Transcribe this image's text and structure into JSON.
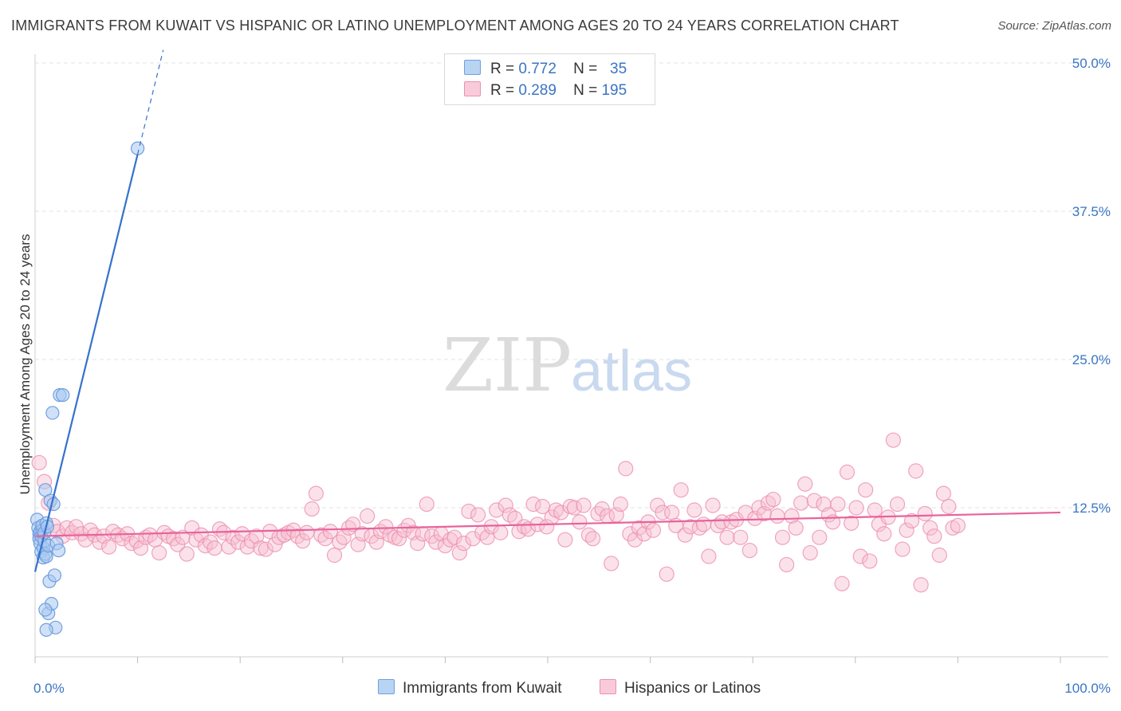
{
  "header": {
    "title": "IMMIGRANTS FROM KUWAIT VS HISPANIC OR LATINO UNEMPLOYMENT AMONG AGES 20 TO 24 YEARS CORRELATION CHART",
    "source": "Source: ZipAtlas.com"
  },
  "watermark": {
    "zip": "ZIP",
    "atlas": "atlas"
  },
  "legend": {
    "rows": [
      {
        "r_label": "R =",
        "r_value": "0.772",
        "n_label": "N =",
        "n_value": "35"
      },
      {
        "r_label": "R =",
        "r_value": "0.289",
        "n_label": "N =",
        "n_value": "195"
      }
    ]
  },
  "bottom_legend": {
    "items": [
      {
        "label": "Immigrants from Kuwait"
      },
      {
        "label": "Hispanics or Latinos"
      }
    ]
  },
  "colors": {
    "blue_fill": "#a9c8f0",
    "blue_stroke": "#6f9fe0",
    "blue_line": "#3572cc",
    "pink_fill": "#f7bfd0",
    "pink_stroke": "#ec8fae",
    "pink_line": "#e8639a",
    "axis_label": "#3a75c4",
    "grid": "#e3e3e3"
  },
  "chart_data": {
    "type": "scatter",
    "title": "IMMIGRANTS FROM KUWAIT VS HISPANIC OR LATINO UNEMPLOYMENT AMONG AGES 20 TO 24 YEARS CORRELATION CHART",
    "xlabel": "",
    "ylabel": "Unemployment Among Ages 20 to 24 years",
    "xlim": [
      0,
      100
    ],
    "ylim": [
      0,
      50
    ],
    "x_tick_labels": [
      "0.0%",
      "100.0%"
    ],
    "y_ticks": [
      12.5,
      25.0,
      37.5,
      50.0
    ],
    "y_tick_labels": [
      "12.5%",
      "25.0%",
      "37.5%",
      "50.0%"
    ],
    "grid": true,
    "series": [
      {
        "name": "Immigrants from Kuwait",
        "r": 0.772,
        "n": 35,
        "trend": {
          "x0": 0.0,
          "y0": 7.1,
          "x1": 10.0,
          "y1": 42.3,
          "dash_to_x": 12.5
        },
        "points": [
          [
            0.2,
            11.5
          ],
          [
            0.3,
            10.8
          ],
          [
            0.4,
            10.3
          ],
          [
            0.4,
            9.9
          ],
          [
            0.5,
            10.5
          ],
          [
            0.5,
            9.5
          ],
          [
            0.6,
            10.1
          ],
          [
            0.6,
            8.8
          ],
          [
            0.7,
            10.6
          ],
          [
            0.7,
            11.0
          ],
          [
            0.8,
            9.1
          ],
          [
            0.8,
            8.3
          ],
          [
            0.9,
            9.7
          ],
          [
            0.9,
            10.4
          ],
          [
            1.0,
            8.6
          ],
          [
            1.0,
            14.0
          ],
          [
            1.1,
            11.2
          ],
          [
            1.1,
            8.4
          ],
          [
            1.2,
            10.9
          ],
          [
            1.3,
            9.3
          ],
          [
            1.3,
            3.6
          ],
          [
            1.4,
            6.3
          ],
          [
            1.5,
            13.1
          ],
          [
            1.6,
            4.4
          ],
          [
            1.7,
            20.5
          ],
          [
            1.8,
            12.8
          ],
          [
            1.9,
            6.8
          ],
          [
            2.0,
            2.4
          ],
          [
            2.1,
            9.5
          ],
          [
            2.3,
            8.9
          ],
          [
            2.4,
            22.0
          ],
          [
            2.7,
            22.0
          ],
          [
            1.0,
            3.9
          ],
          [
            1.1,
            2.2
          ],
          [
            10.0,
            42.8
          ]
        ]
      },
      {
        "name": "Hispanics or Latinos",
        "r": 0.289,
        "n": 195,
        "trend": {
          "x0": 0.0,
          "y0": 10.1,
          "x1": 100.0,
          "y1": 12.1
        },
        "points": [
          [
            0.4,
            16.3
          ],
          [
            0.9,
            14.7
          ],
          [
            1.3,
            12.9
          ],
          [
            1.8,
            11.0
          ],
          [
            2.2,
            10.5
          ],
          [
            2.7,
            10.1
          ],
          [
            3.1,
            10.8
          ],
          [
            3.6,
            10.4
          ],
          [
            4.0,
            10.9
          ],
          [
            4.5,
            10.3
          ],
          [
            4.9,
            9.8
          ],
          [
            5.4,
            10.6
          ],
          [
            5.8,
            10.2
          ],
          [
            6.3,
            9.6
          ],
          [
            6.7,
            10.1
          ],
          [
            7.2,
            9.2
          ],
          [
            7.6,
            10.5
          ],
          [
            8.1,
            10.2
          ],
          [
            8.5,
            9.9
          ],
          [
            9.0,
            10.3
          ],
          [
            9.4,
            9.5
          ],
          [
            9.9,
            9.7
          ],
          [
            10.3,
            9.1
          ],
          [
            10.8,
            10.0
          ],
          [
            11.2,
            10.2
          ],
          [
            11.7,
            9.8
          ],
          [
            12.1,
            8.7
          ],
          [
            12.6,
            10.4
          ],
          [
            13.0,
            10.1
          ],
          [
            13.5,
            9.9
          ],
          [
            13.9,
            9.4
          ],
          [
            14.4,
            10.0
          ],
          [
            14.8,
            8.6
          ],
          [
            15.3,
            10.8
          ],
          [
            15.7,
            9.8
          ],
          [
            16.2,
            10.2
          ],
          [
            16.6,
            9.3
          ],
          [
            17.1,
            9.6
          ],
          [
            17.5,
            9.1
          ],
          [
            18.0,
            10.7
          ],
          [
            18.4,
            10.4
          ],
          [
            18.9,
            9.2
          ],
          [
            19.3,
            10.0
          ],
          [
            19.8,
            9.6
          ],
          [
            20.2,
            10.3
          ],
          [
            20.7,
            9.2
          ],
          [
            21.1,
            9.7
          ],
          [
            21.6,
            10.1
          ],
          [
            22.0,
            9.1
          ],
          [
            22.5,
            9.0
          ],
          [
            22.9,
            10.5
          ],
          [
            23.4,
            9.4
          ],
          [
            23.8,
            10.0
          ],
          [
            24.3,
            10.2
          ],
          [
            24.7,
            10.4
          ],
          [
            25.2,
            10.6
          ],
          [
            25.6,
            10.1
          ],
          [
            26.1,
            9.7
          ],
          [
            26.5,
            10.4
          ],
          [
            27.0,
            12.4
          ],
          [
            27.4,
            13.7
          ],
          [
            27.9,
            10.2
          ],
          [
            28.3,
            9.9
          ],
          [
            28.8,
            10.5
          ],
          [
            29.2,
            8.5
          ],
          [
            29.7,
            9.6
          ],
          [
            30.1,
            10.0
          ],
          [
            30.6,
            10.8
          ],
          [
            31.0,
            11.1
          ],
          [
            31.5,
            9.4
          ],
          [
            31.9,
            10.3
          ],
          [
            32.4,
            11.8
          ],
          [
            32.8,
            10.1
          ],
          [
            33.3,
            9.6
          ],
          [
            33.7,
            10.5
          ],
          [
            34.2,
            10.9
          ],
          [
            34.6,
            10.2
          ],
          [
            35.1,
            10.0
          ],
          [
            35.5,
            9.9
          ],
          [
            36.0,
            10.6
          ],
          [
            36.4,
            11.0
          ],
          [
            36.9,
            10.4
          ],
          [
            37.3,
            9.5
          ],
          [
            37.8,
            10.3
          ],
          [
            38.2,
            12.8
          ],
          [
            38.7,
            10.1
          ],
          [
            39.1,
            9.6
          ],
          [
            39.6,
            10.3
          ],
          [
            40.0,
            9.3
          ],
          [
            40.5,
            9.8
          ],
          [
            40.9,
            10.0
          ],
          [
            41.4,
            8.7
          ],
          [
            41.8,
            9.5
          ],
          [
            42.3,
            12.2
          ],
          [
            42.7,
            9.9
          ],
          [
            43.2,
            11.9
          ],
          [
            43.6,
            10.4
          ],
          [
            44.1,
            10.0
          ],
          [
            44.5,
            10.9
          ],
          [
            45.0,
            12.3
          ],
          [
            45.4,
            10.4
          ],
          [
            45.9,
            12.7
          ],
          [
            46.3,
            11.9
          ],
          [
            46.8,
            11.6
          ],
          [
            47.2,
            10.5
          ],
          [
            47.7,
            10.9
          ],
          [
            48.1,
            10.7
          ],
          [
            48.6,
            12.8
          ],
          [
            49.0,
            11.1
          ],
          [
            49.5,
            12.6
          ],
          [
            49.9,
            10.9
          ],
          [
            50.4,
            11.7
          ],
          [
            50.8,
            12.3
          ],
          [
            51.3,
            12.1
          ],
          [
            51.7,
            9.8
          ],
          [
            52.2,
            12.6
          ],
          [
            52.6,
            12.5
          ],
          [
            53.1,
            11.3
          ],
          [
            53.5,
            12.7
          ],
          [
            54.0,
            10.2
          ],
          [
            54.4,
            9.9
          ],
          [
            54.9,
            12.0
          ],
          [
            55.3,
            12.4
          ],
          [
            55.8,
            11.8
          ],
          [
            56.2,
            7.8
          ],
          [
            56.7,
            11.9
          ],
          [
            57.1,
            12.8
          ],
          [
            57.6,
            15.8
          ],
          [
            58.0,
            10.3
          ],
          [
            58.5,
            9.8
          ],
          [
            58.9,
            10.8
          ],
          [
            59.4,
            10.3
          ],
          [
            59.8,
            11.3
          ],
          [
            60.3,
            10.6
          ],
          [
            60.7,
            12.7
          ],
          [
            61.2,
            12.1
          ],
          [
            61.6,
            6.9
          ],
          [
            62.1,
            12.1
          ],
          [
            62.5,
            11.0
          ],
          [
            63.0,
            14.0
          ],
          [
            63.4,
            10.2
          ],
          [
            63.9,
            10.9
          ],
          [
            64.3,
            12.3
          ],
          [
            64.8,
            10.8
          ],
          [
            65.2,
            11.1
          ],
          [
            65.7,
            8.4
          ],
          [
            66.1,
            12.7
          ],
          [
            66.6,
            11.0
          ],
          [
            67.0,
            11.3
          ],
          [
            67.5,
            10.0
          ],
          [
            67.9,
            11.3
          ],
          [
            68.4,
            11.5
          ],
          [
            68.8,
            10.0
          ],
          [
            69.3,
            12.1
          ],
          [
            69.7,
            8.9
          ],
          [
            70.2,
            11.6
          ],
          [
            70.6,
            12.5
          ],
          [
            71.1,
            12.0
          ],
          [
            71.5,
            12.9
          ],
          [
            72.0,
            13.2
          ],
          [
            72.4,
            11.8
          ],
          [
            72.9,
            10.0
          ],
          [
            73.3,
            7.7
          ],
          [
            73.8,
            11.8
          ],
          [
            74.2,
            10.8
          ],
          [
            74.7,
            12.9
          ],
          [
            75.1,
            14.5
          ],
          [
            75.6,
            8.7
          ],
          [
            76.0,
            13.1
          ],
          [
            76.5,
            10.0
          ],
          [
            76.9,
            12.8
          ],
          [
            77.4,
            11.9
          ],
          [
            77.8,
            11.3
          ],
          [
            78.3,
            12.8
          ],
          [
            78.7,
            6.1
          ],
          [
            79.2,
            15.5
          ],
          [
            79.6,
            11.2
          ],
          [
            80.1,
            12.5
          ],
          [
            80.5,
            8.4
          ],
          [
            81.0,
            14.0
          ],
          [
            81.4,
            8.0
          ],
          [
            81.9,
            12.3
          ],
          [
            82.3,
            11.1
          ],
          [
            82.8,
            10.3
          ],
          [
            83.2,
            11.7
          ],
          [
            83.7,
            18.2
          ],
          [
            84.1,
            12.8
          ],
          [
            84.6,
            9.0
          ],
          [
            85.0,
            10.6
          ],
          [
            85.5,
            11.4
          ],
          [
            85.9,
            15.6
          ],
          [
            86.4,
            6.0
          ],
          [
            86.8,
            12.0
          ],
          [
            87.3,
            10.8
          ],
          [
            87.7,
            10.1
          ],
          [
            88.2,
            8.5
          ],
          [
            88.6,
            13.7
          ],
          [
            89.1,
            12.6
          ],
          [
            89.5,
            10.8
          ],
          [
            90.0,
            11.0
          ]
        ]
      }
    ]
  }
}
